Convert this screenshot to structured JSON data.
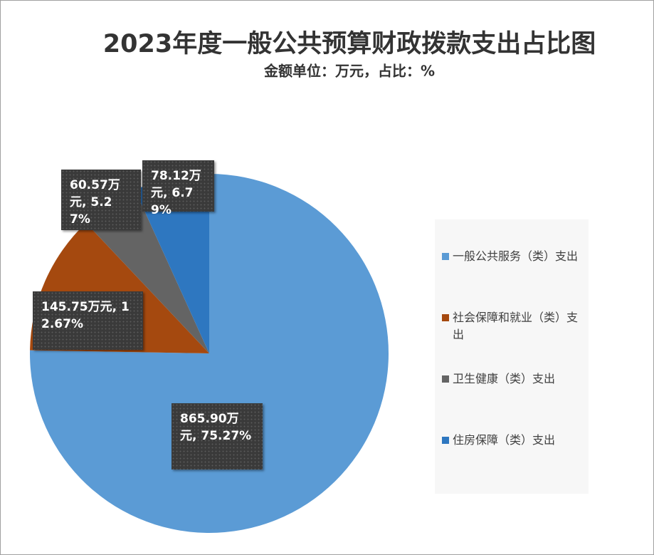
{
  "chart_data": {
    "type": "pie",
    "title": "2023年度一般公共预算财政拨款支出占比图",
    "subtitle": "金额单位：万元，占比：%",
    "categories": [
      "一般公共服务（类）支出",
      "社会保障和就业（类）支出",
      "卫生健康（类）支出",
      "住房保障（类）支出"
    ],
    "values": [
      865.9,
      145.75,
      60.57,
      78.12
    ],
    "value_labels": [
      "865.90万元, 75.27%",
      "145.75万元, 12.67%",
      "60.57万元, 5.27%",
      "78.12万元, 6.79%"
    ],
    "colors": [
      "#5b9bd5",
      "#a5490f",
      "#646464",
      "#2e77c0"
    ],
    "legend": "right"
  }
}
